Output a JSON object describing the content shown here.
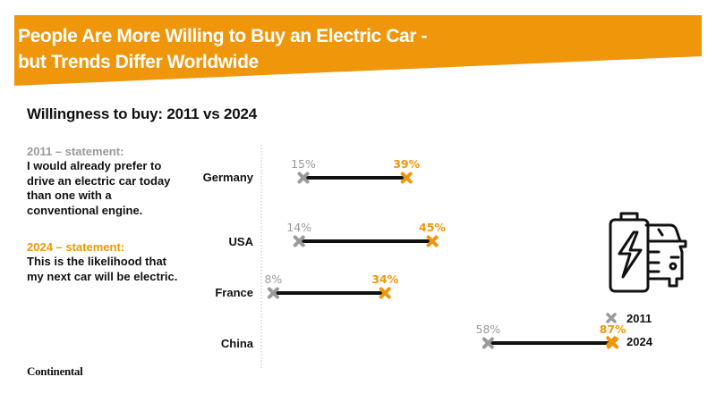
{
  "header": {
    "title_line1": "People Are More Willing to Buy an Electric Car -",
    "title_line2": "but Trends Differ Worldwide",
    "banner_color": "#f0960b"
  },
  "subtitle": "Willingness to buy: 2011 vs 2024",
  "statements": {
    "s2011_head": "2011 – statement:",
    "s2011_body": "I would already prefer to drive an electric car today than one with a conventional engine.",
    "s2024_head": "2024 – statement:",
    "s2024_body": "This is the likelihood that my next car will be electric."
  },
  "legend": {
    "y2011": "2011",
    "y2024": "2024"
  },
  "logo": "Continental",
  "chart_data": {
    "type": "dumbbell",
    "title": "Willingness to buy: 2011 vs 2024",
    "categories": [
      "Germany",
      "USA",
      "France",
      "China"
    ],
    "series": [
      {
        "name": "2011",
        "color": "#9a9a9a",
        "values": [
          15,
          14,
          8,
          58
        ],
        "labels": [
          "15%",
          "14%",
          "8%",
          "58%"
        ]
      },
      {
        "name": "2024",
        "color": "#f0960b",
        "values": [
          39,
          45,
          34,
          87
        ],
        "labels": [
          "39%",
          "45%",
          "34%",
          "87%"
        ]
      }
    ],
    "unit": "%",
    "xlim": [
      0,
      100
    ],
    "legend_position": "right",
    "grid": false
  }
}
